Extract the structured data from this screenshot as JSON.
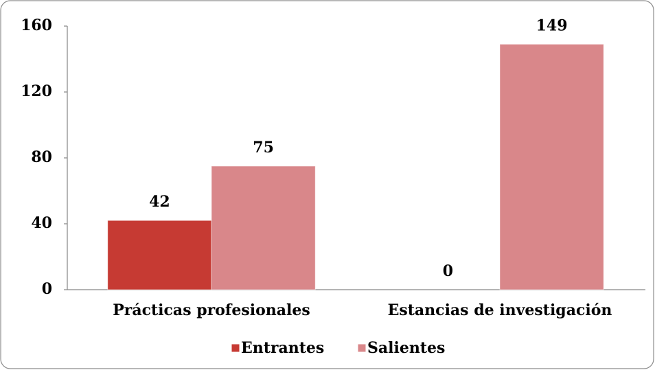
{
  "chart_data": {
    "type": "bar",
    "categories": [
      "Prácticas profesionales",
      "Estancias de investigación"
    ],
    "series": [
      {
        "name": "Entrantes",
        "color": "#c63a33",
        "values": [
          42,
          0
        ]
      },
      {
        "name": "Salientes",
        "color": "#d9878a",
        "values": [
          75,
          149
        ]
      }
    ],
    "ylim": [
      0,
      160
    ],
    "yticks": [
      0,
      40,
      80,
      120,
      160
    ],
    "grid": false,
    "legend": "bottom"
  }
}
